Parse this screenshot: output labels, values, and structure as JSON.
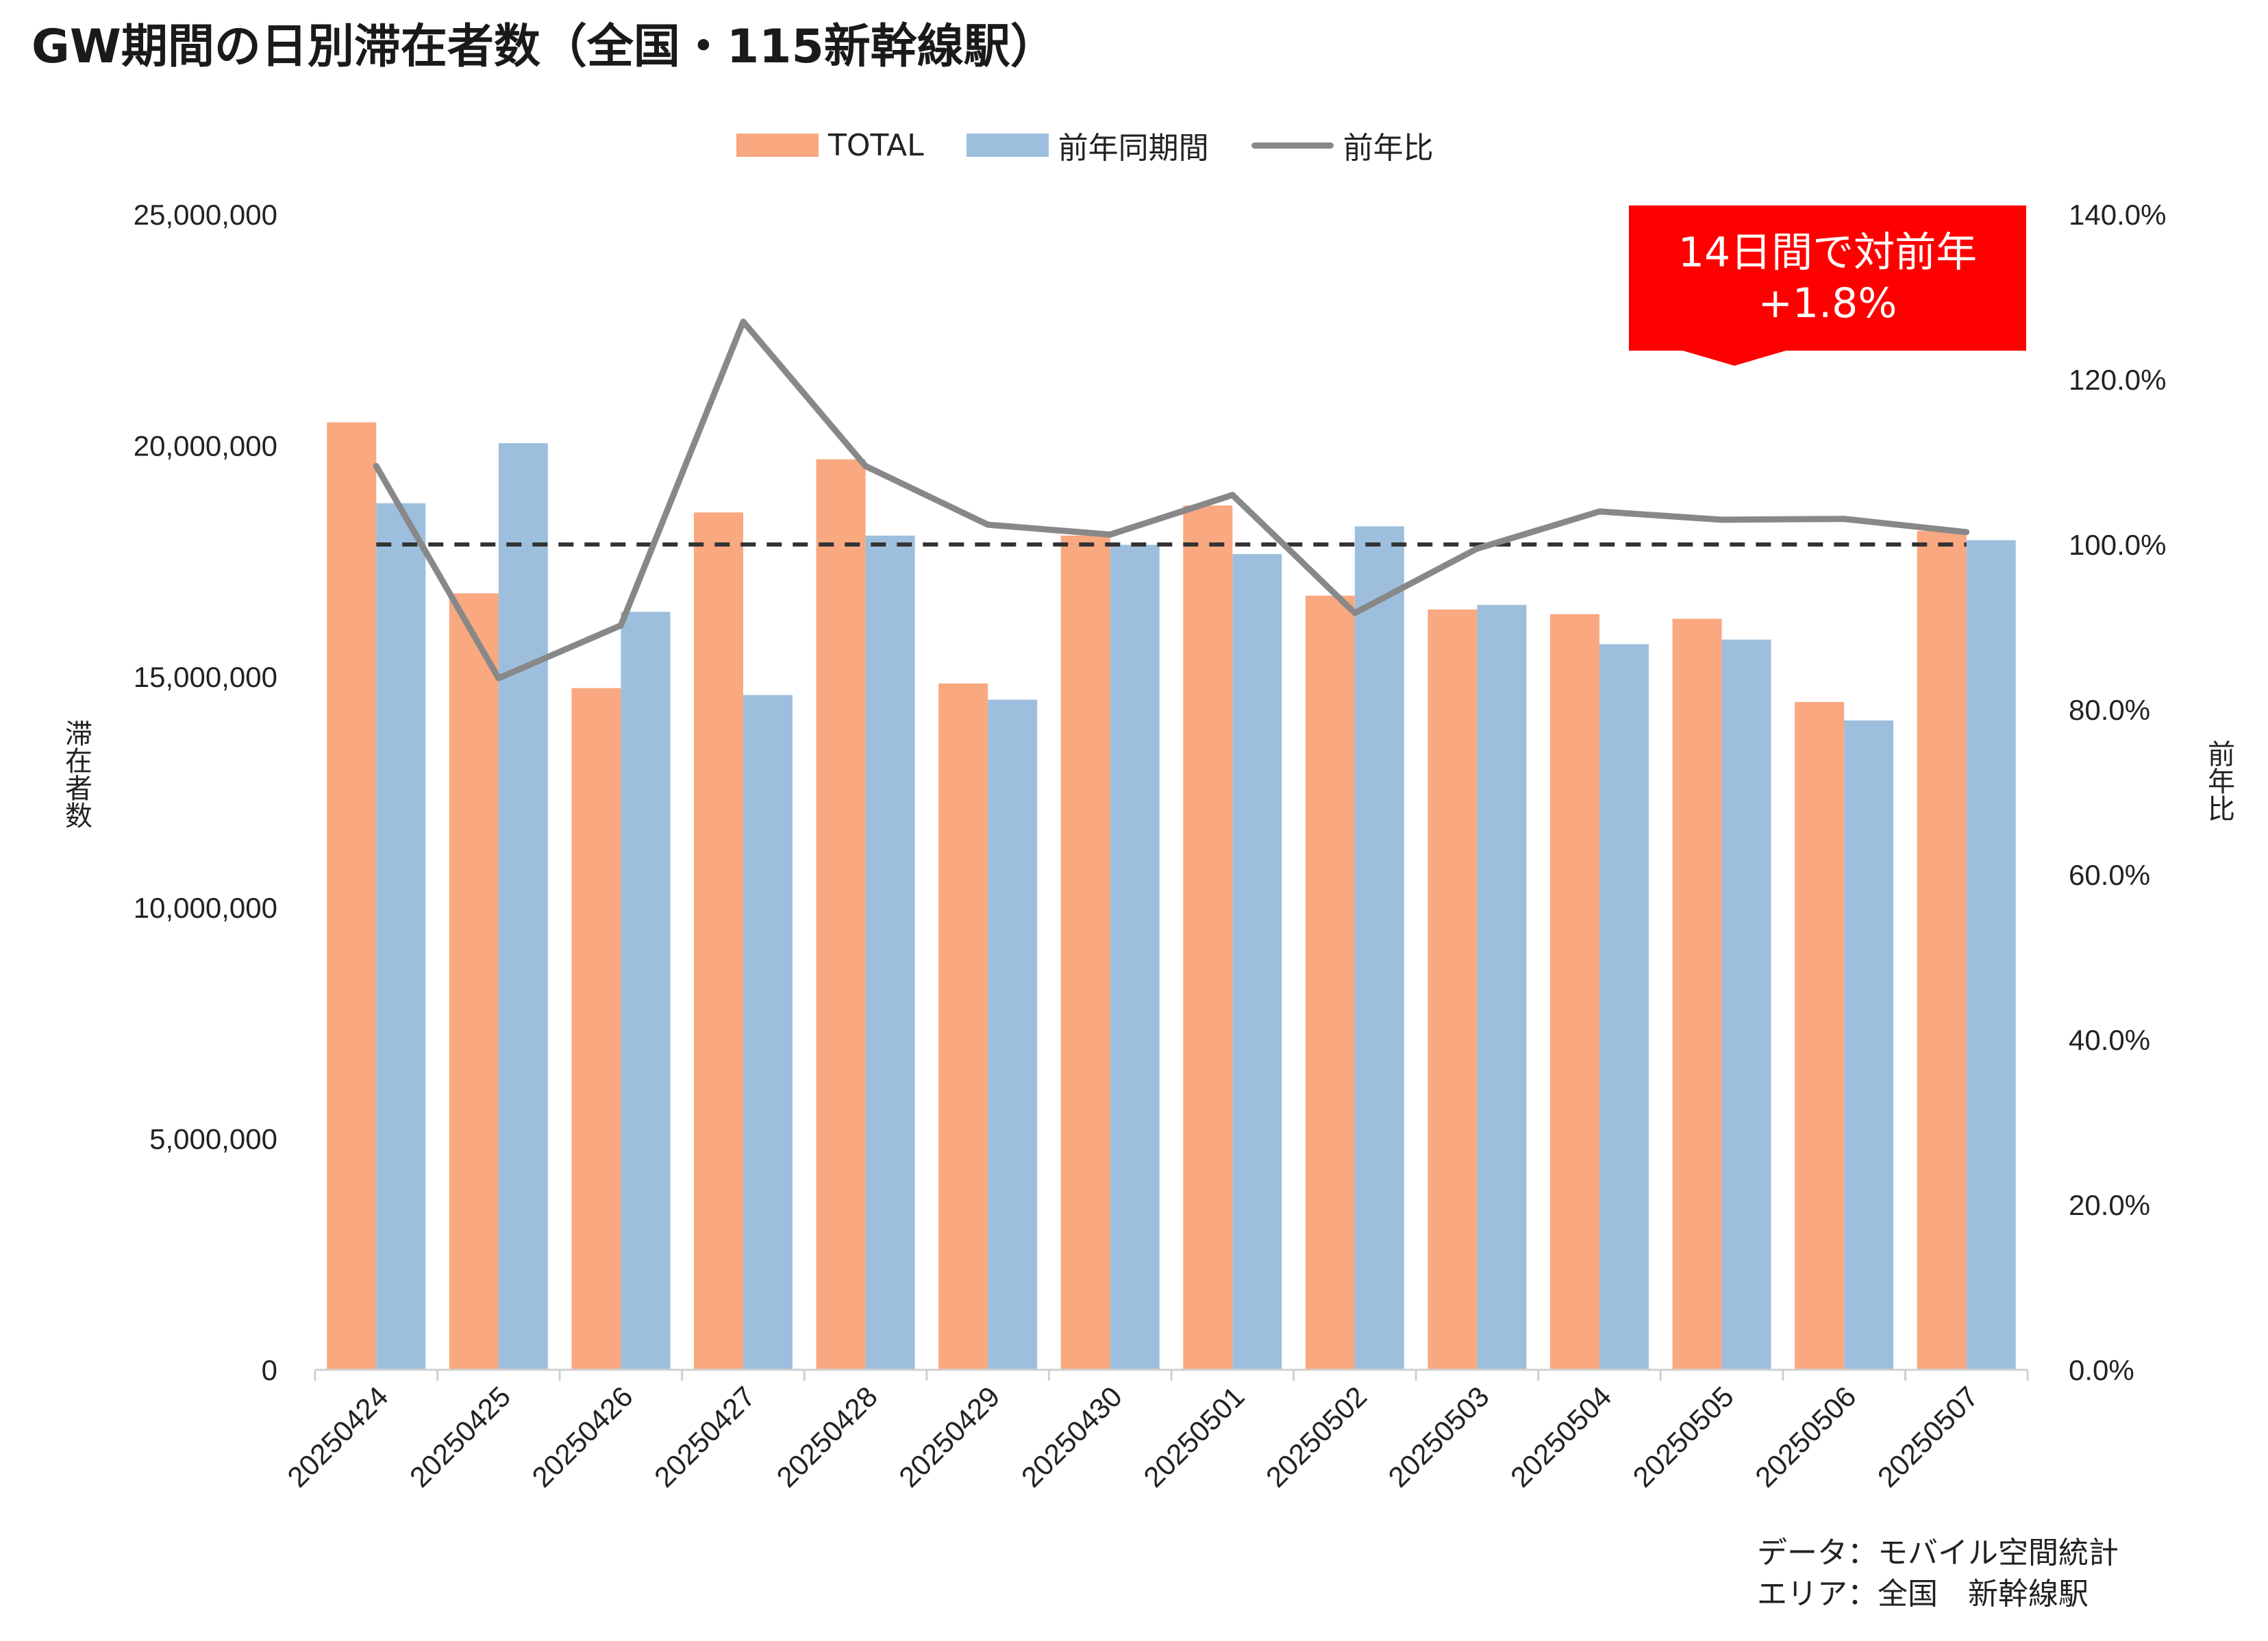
{
  "chart_data": {
    "type": "bar",
    "title": "GW期間の日別滞在者数（全国・115新幹線駅）",
    "categories": [
      "20250424",
      "20250425",
      "20250426",
      "20250427",
      "20250428",
      "20250429",
      "20250430",
      "20250501",
      "20250502",
      "20250503",
      "20250504",
      "20250505",
      "20250506",
      "20250507"
    ],
    "series": [
      {
        "name": "TOTAL",
        "type": "bar",
        "color": "#F9A880",
        "values": [
          20500000,
          16800000,
          14750000,
          18550000,
          19700000,
          14850000,
          18050000,
          18700000,
          16750000,
          16450000,
          16350000,
          16250000,
          14450000,
          18150000
        ]
      },
      {
        "name": "前年同期間",
        "type": "bar",
        "color": "#9DBFDD",
        "values": [
          18750000,
          20050000,
          16400000,
          14600000,
          18050000,
          14500000,
          17850000,
          17650000,
          18250000,
          16550000,
          15700000,
          15800000,
          14050000,
          17950000
        ]
      },
      {
        "name": "前年比",
        "type": "line",
        "axis": "right",
        "color": "#888888",
        "values": [
          1.095,
          0.838,
          0.902,
          1.27,
          1.095,
          1.024,
          1.012,
          1.06,
          0.917,
          0.995,
          1.04,
          1.03,
          1.031,
          1.015
        ]
      }
    ],
    "reference_line": {
      "axis": "right",
      "value": 1.0,
      "style": "dashed",
      "color": "#333333"
    },
    "ylabel": "滞在者数",
    "ylabel_right": "前年比",
    "ylim": [
      0,
      25000000
    ],
    "ylim_right": [
      0,
      1.4
    ],
    "yticks": [
      "0",
      "5,000,000",
      "10,000,000",
      "15,000,000",
      "20,000,000",
      "25,000,000"
    ],
    "yticks_right": [
      "0.0%",
      "20.0%",
      "40.0%",
      "60.0%",
      "80.0%",
      "100.0%",
      "120.0%",
      "140.0%"
    ],
    "legend_placement": "top-center",
    "grid": false,
    "annotation": {
      "line1": "14日間で対前年",
      "line2": "+1.8%",
      "color": "#FF0000"
    }
  },
  "source": {
    "line1": "データ：モバイル空間統計",
    "line2": "エリア：全国　新幹線駅"
  }
}
